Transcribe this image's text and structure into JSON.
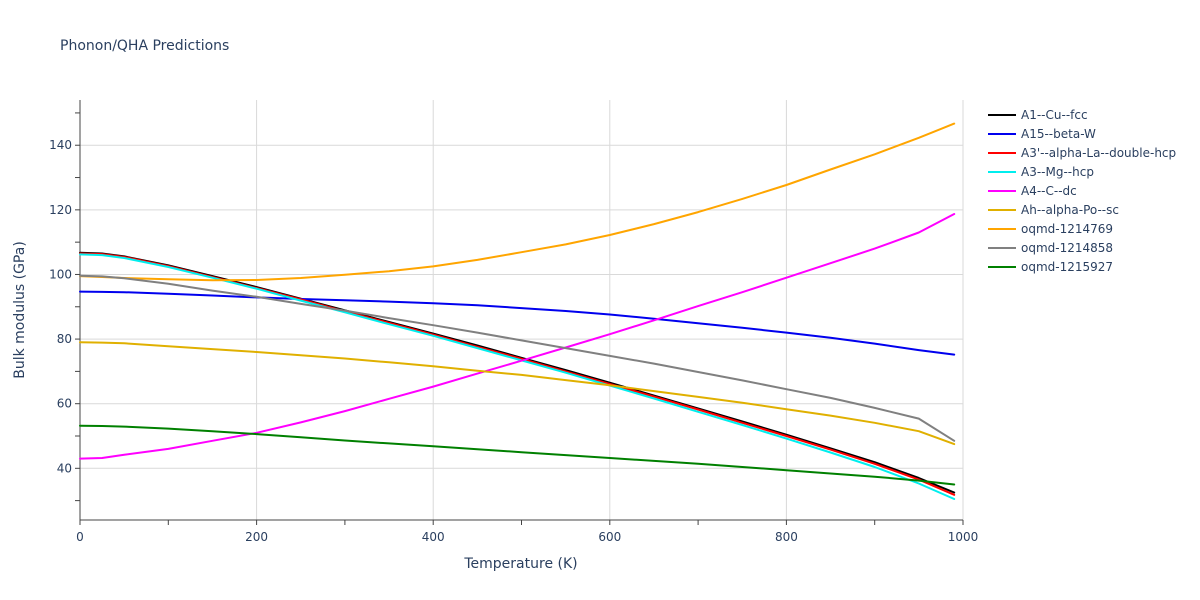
{
  "chart_data": {
    "type": "line",
    "title": "Phonon/QHA Predictions",
    "xlabel": "Temperature (K)",
    "ylabel": "Bulk modulus (GPa)",
    "xlim": [
      0,
      1000
    ],
    "ylim": [
      24,
      154
    ],
    "xticks": [
      0,
      200,
      400,
      600,
      800,
      1000
    ],
    "yticks": [
      40,
      60,
      80,
      100,
      120,
      140
    ],
    "grid": true,
    "legend_position": "right",
    "x": [
      0,
      25,
      50,
      100,
      150,
      200,
      250,
      300,
      350,
      400,
      450,
      500,
      550,
      600,
      650,
      700,
      750,
      800,
      850,
      900,
      950,
      990
    ],
    "series": [
      {
        "name": "A1--Cu--fcc",
        "color": "#000000",
        "values": [
          106.7,
          106.5,
          105.6,
          102.8,
          99.5,
          96.1,
          92.5,
          88.9,
          85.3,
          81.7,
          78.0,
          74.2,
          70.4,
          66.5,
          62.5,
          58.5,
          54.5,
          50.4,
          46.2,
          41.9,
          37.0,
          32.5
        ]
      },
      {
        "name": "A15--beta-W",
        "color": "#0000ee",
        "values": [
          94.7,
          94.6,
          94.5,
          94.0,
          93.5,
          92.9,
          92.4,
          92.0,
          91.6,
          91.1,
          90.5,
          89.6,
          88.7,
          87.6,
          86.3,
          84.9,
          83.5,
          82.0,
          80.4,
          78.6,
          76.6,
          75.2
        ]
      },
      {
        "name": "A3'--alpha-La--double-hcp",
        "color": "#ff0000",
        "values": [
          106.5,
          106.3,
          105.4,
          102.6,
          99.2,
          95.8,
          92.3,
          88.6,
          85.0,
          81.4,
          77.6,
          73.9,
          70.0,
          66.1,
          62.2,
          58.2,
          54.1,
          50.0,
          45.8,
          41.4,
          36.5,
          31.8
        ]
      },
      {
        "name": "A3--Mg--hcp",
        "color": "#00eeee",
        "values": [
          106.2,
          106.0,
          105.1,
          102.3,
          99.0,
          95.6,
          91.9,
          88.3,
          84.6,
          81.0,
          77.2,
          73.4,
          69.6,
          65.6,
          61.6,
          57.5,
          53.4,
          49.2,
          44.9,
          40.4,
          35.3,
          30.5
        ]
      },
      {
        "name": "A4--C--dc",
        "color": "#ff00ff",
        "values": [
          43.0,
          43.2,
          44.2,
          46.0,
          48.5,
          51.0,
          54.2,
          57.7,
          61.5,
          65.3,
          69.3,
          73.3,
          77.4,
          81.5,
          85.8,
          90.2,
          94.5,
          99.0,
          103.5,
          108.0,
          113.0,
          118.7
        ]
      },
      {
        "name": "Ah--alpha-Po--sc",
        "color": "#e0b000",
        "values": [
          79.0,
          78.9,
          78.7,
          77.8,
          76.9,
          76.0,
          75.0,
          74.0,
          72.8,
          71.6,
          70.2,
          68.9,
          67.3,
          65.7,
          63.9,
          62.1,
          60.3,
          58.3,
          56.3,
          54.1,
          51.5,
          47.5
        ]
      },
      {
        "name": "oqmd-1214769",
        "color": "#ffa500",
        "values": [
          99.5,
          99.2,
          98.9,
          98.5,
          98.2,
          98.3,
          98.9,
          99.9,
          101.0,
          102.5,
          104.5,
          106.9,
          109.3,
          112.2,
          115.6,
          119.3,
          123.4,
          127.7,
          132.5,
          137.2,
          142.3,
          146.7
        ]
      },
      {
        "name": "oqmd-1214858",
        "color": "#808080",
        "values": [
          99.6,
          99.4,
          98.8,
          97.1,
          95.0,
          93.1,
          90.9,
          88.8,
          86.5,
          84.3,
          82.0,
          79.6,
          77.2,
          74.8,
          72.4,
          69.8,
          67.2,
          64.5,
          61.8,
          58.7,
          55.4,
          48.5
        ]
      },
      {
        "name": "oqmd-1215927",
        "color": "#008000",
        "values": [
          53.2,
          53.1,
          52.9,
          52.3,
          51.5,
          50.6,
          49.6,
          48.6,
          47.7,
          46.8,
          45.9,
          45.0,
          44.1,
          43.2,
          42.3,
          41.4,
          40.4,
          39.4,
          38.4,
          37.4,
          36.2,
          35.0
        ]
      }
    ]
  }
}
